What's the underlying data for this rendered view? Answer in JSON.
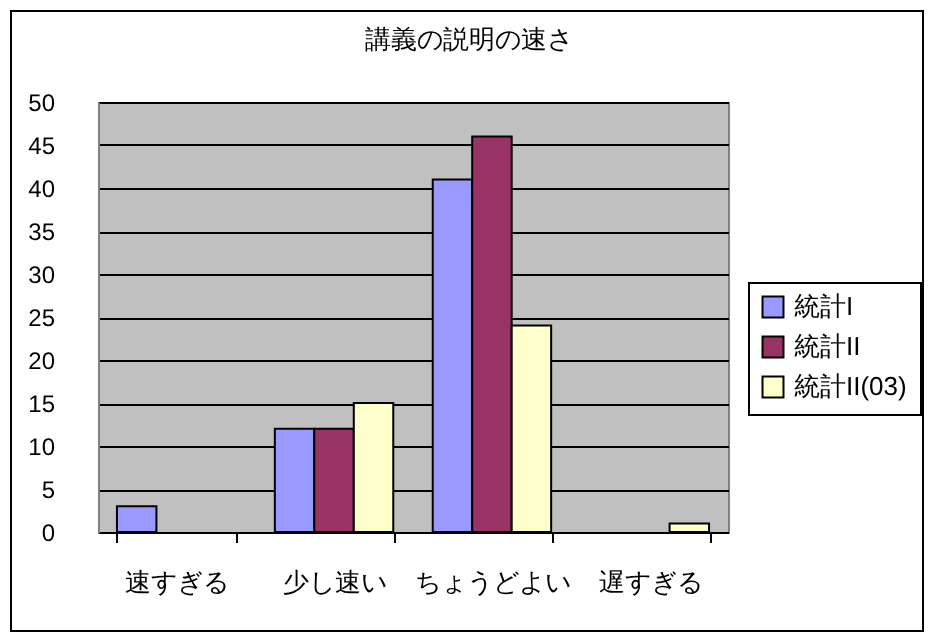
{
  "chart_data": {
    "type": "bar",
    "title": "講義の説明の速さ",
    "categories": [
      "速すぎる",
      "少し速い",
      "ちょうどよい",
      "遅すぎる"
    ],
    "series": [
      {
        "name": "統計I",
        "color": "#9999ff",
        "values": [
          3,
          12,
          41,
          0
        ]
      },
      {
        "name": "統計II",
        "color": "#993366",
        "values": [
          0,
          12,
          46,
          0
        ]
      },
      {
        "name": "統計II(03)",
        "color": "#ffffcc",
        "values": [
          0,
          15,
          24,
          1
        ]
      }
    ],
    "ylim": [
      0,
      50
    ],
    "yticks": [
      0,
      5,
      10,
      15,
      20,
      25,
      30,
      35,
      40,
      45,
      50
    ],
    "grid": "y",
    "legend": "right"
  }
}
